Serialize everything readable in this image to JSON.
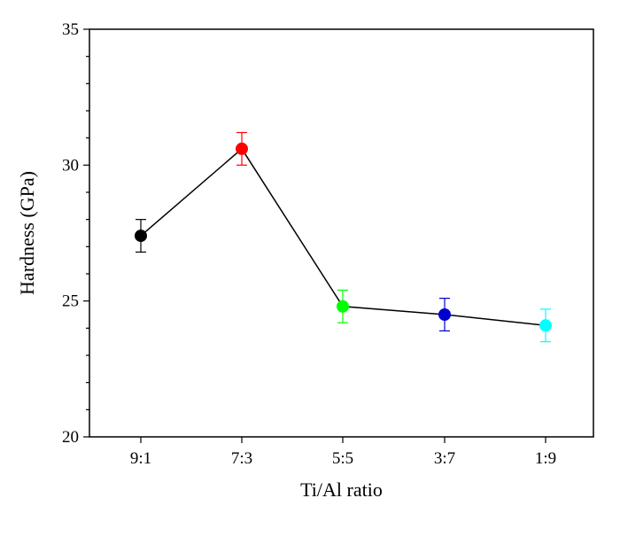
{
  "chart_data": {
    "type": "scatter",
    "title": "",
    "xlabel": "Ti/Al ratio",
    "ylabel": "Hardness (GPa)",
    "categories": [
      "9:1",
      "7:3",
      "5:5",
      "3:7",
      "1:9"
    ],
    "values": [
      27.4,
      30.6,
      24.8,
      24.5,
      24.1
    ],
    "errors": [
      0.6,
      0.6,
      0.6,
      0.6,
      0.6
    ],
    "point_colors": [
      "#000000",
      "#ff0000",
      "#00ff00",
      "#0000cc",
      "#00ffff"
    ],
    "errorbar_colors": [
      "#000000",
      "#ff0000",
      "#00ff00",
      "#0000cc",
      "#00ffff"
    ],
    "connecting_line": true,
    "line_color": "#000000",
    "ylim": [
      20,
      35
    ],
    "yticks": [
      20,
      25,
      30,
      35
    ],
    "ytick_labels": [
      "20",
      "25",
      "30",
      "35"
    ],
    "y_minor_step": 1,
    "grid": false,
    "legend": "none"
  }
}
